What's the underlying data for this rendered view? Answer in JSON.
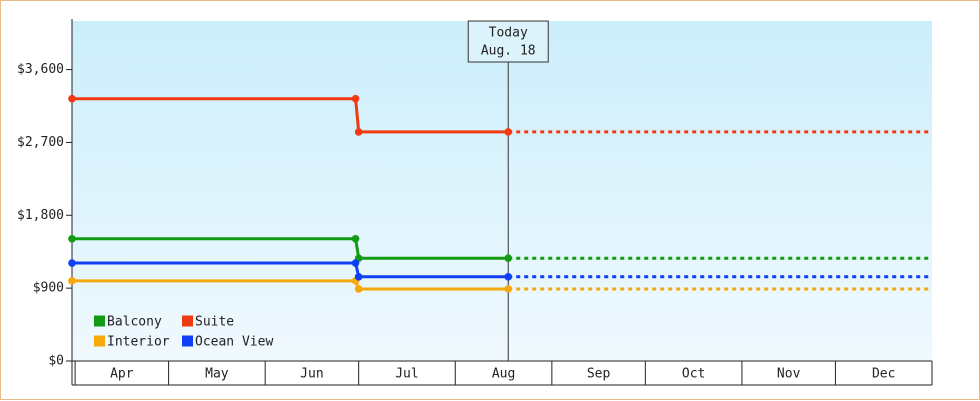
{
  "chart_data": {
    "type": "line",
    "ylim": [
      0,
      4200
    ],
    "y_ticks": [
      {
        "value": 0,
        "label": "$0"
      },
      {
        "value": 900,
        "label": "$900"
      },
      {
        "value": 1800,
        "label": "$1,800"
      },
      {
        "value": 2700,
        "label": "$2,700"
      },
      {
        "value": 3600,
        "label": "$3,600"
      }
    ],
    "x_range": [
      "2023-03-31",
      "2024-01-01"
    ],
    "months": [
      {
        "label": "Apr",
        "start": "2023-04-01"
      },
      {
        "label": "May",
        "start": "2023-05-01"
      },
      {
        "label": "Jun",
        "start": "2023-06-01"
      },
      {
        "label": "Jul",
        "start": "2023-07-01"
      },
      {
        "label": "Aug",
        "start": "2023-08-01"
      },
      {
        "label": "Sep",
        "start": "2023-09-01"
      },
      {
        "label": "Oct",
        "start": "2023-10-01"
      },
      {
        "label": "Nov",
        "start": "2023-11-01"
      },
      {
        "label": "Dec",
        "start": "2023-12-01"
      }
    ],
    "today": {
      "date": "2023-08-18",
      "label_line1": "Today",
      "label_line2": "Aug. 18"
    },
    "projection_end": "2024-01-01",
    "legend_position": "bottom-left",
    "grid": false,
    "background_gradient": [
      "#cbeefb",
      "#f0f9fe"
    ],
    "series": [
      {
        "name": "Balcony",
        "color": "#139a13",
        "points": [
          {
            "x": "2023-03-31",
            "y": 1510
          },
          {
            "x": "2023-06-30",
            "y": 1510
          },
          {
            "x": "2023-07-01",
            "y": 1270
          },
          {
            "x": "2023-08-18",
            "y": 1270
          }
        ]
      },
      {
        "name": "Suite",
        "color": "#f03a12",
        "points": [
          {
            "x": "2023-03-31",
            "y": 3240
          },
          {
            "x": "2023-06-30",
            "y": 3240
          },
          {
            "x": "2023-07-01",
            "y": 2830
          },
          {
            "x": "2023-08-18",
            "y": 2830
          }
        ]
      },
      {
        "name": "Interior",
        "color": "#f5a90d",
        "points": [
          {
            "x": "2023-03-31",
            "y": 990
          },
          {
            "x": "2023-06-30",
            "y": 990
          },
          {
            "x": "2023-07-01",
            "y": 890
          },
          {
            "x": "2023-08-18",
            "y": 890
          }
        ]
      },
      {
        "name": "Ocean View",
        "color": "#0f3ff3",
        "points": [
          {
            "x": "2023-03-31",
            "y": 1210
          },
          {
            "x": "2023-06-30",
            "y": 1210
          },
          {
            "x": "2023-07-01",
            "y": 1040
          },
          {
            "x": "2023-08-18",
            "y": 1040
          }
        ]
      }
    ]
  }
}
